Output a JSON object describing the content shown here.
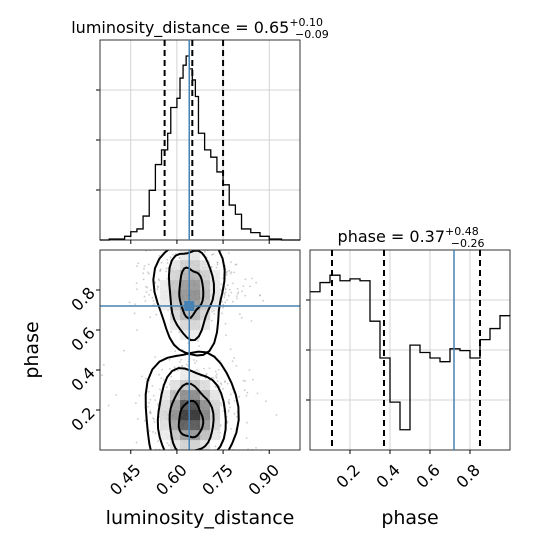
{
  "chart_data": {
    "type": "corner",
    "parameters": [
      "luminosity_distance",
      "phase"
    ],
    "titles": {
      "luminosity_distance": {
        "name": "luminosity_distance",
        "median": "0.65",
        "plus": "+0.10",
        "minus": "−0.09"
      },
      "phase": {
        "name": "phase",
        "median": "0.37",
        "plus": "+0.48",
        "minus": "−0.26"
      }
    },
    "axis_labels": {
      "x_left": "luminosity_distance",
      "x_right": "phase",
      "y_left": "phase"
    },
    "luminosity_distance": {
      "range": [
        0.35,
        1.0
      ],
      "ticks": [
        0.45,
        0.6,
        0.75,
        0.9
      ],
      "tick_labels": [
        "0.45",
        "0.60",
        "0.75",
        "0.90"
      ],
      "quantiles": [
        0.56,
        0.65,
        0.75
      ],
      "truth": 0.64,
      "hist_edges": [
        0.35,
        0.38,
        0.4,
        0.43,
        0.45,
        0.47,
        0.49,
        0.51,
        0.53,
        0.55,
        0.57,
        0.58,
        0.6,
        0.61,
        0.62,
        0.63,
        0.64,
        0.65,
        0.66,
        0.67,
        0.69,
        0.71,
        0.73,
        0.75,
        0.77,
        0.79,
        0.81,
        0.84,
        0.87,
        0.9,
        0.94,
        1.0
      ],
      "hist_values": [
        0.0,
        0.005,
        0.005,
        0.02,
        0.045,
        0.06,
        0.13,
        0.27,
        0.41,
        0.49,
        0.58,
        0.72,
        0.77,
        0.88,
        0.95,
        1.0,
        0.93,
        0.87,
        0.78,
        0.58,
        0.49,
        0.45,
        0.37,
        0.3,
        0.19,
        0.14,
        0.06,
        0.04,
        0.02,
        0.005,
        0.0
      ]
    },
    "phase": {
      "range": [
        0.0,
        1.0
      ],
      "ticks": [
        0.2,
        0.4,
        0.6,
        0.8
      ],
      "tick_labels": [
        "0.2",
        "0.4",
        "0.6",
        "0.8"
      ],
      "quantiles": [
        0.11,
        0.37,
        0.85
      ],
      "truth": 0.72,
      "hist_edges": [
        0.0,
        0.05,
        0.1,
        0.15,
        0.2,
        0.25,
        0.3,
        0.35,
        0.4,
        0.45,
        0.5,
        0.55,
        0.6,
        0.65,
        0.7,
        0.75,
        0.8,
        0.85,
        0.9,
        0.95,
        1.0
      ],
      "hist_values": [
        0.86,
        0.91,
        0.95,
        0.92,
        0.93,
        0.92,
        0.7,
        0.5,
        0.26,
        0.11,
        0.57,
        0.53,
        0.5,
        0.48,
        0.55,
        0.54,
        0.5,
        0.6,
        0.66,
        0.73
      ]
    },
    "joint": {
      "contour_levels": [
        "0.5",
        "1.0",
        "1.5",
        "2.0"
      ],
      "density_note": "2D histogram of luminosity_distance vs phase with bimodal phase structure"
    }
  }
}
